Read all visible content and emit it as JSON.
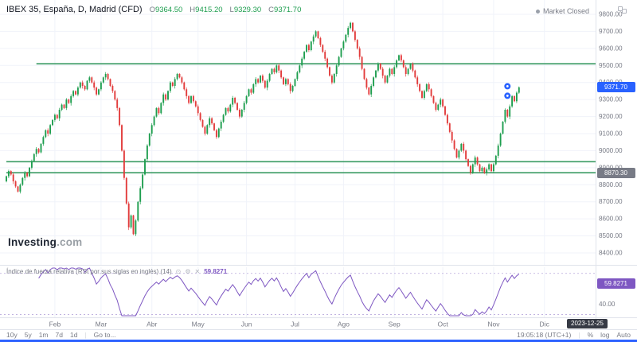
{
  "header": {
    "symbol": "IBEX 35, España, D, Madrid (CFD)",
    "ohlc": {
      "o_label": "O",
      "o": "9364.50",
      "h_label": "H",
      "h": "9415.20",
      "l_label": "L",
      "l": "9329.30",
      "c_label": "C",
      "c": "9371.70"
    },
    "market_status": "Market Closed"
  },
  "watermark": {
    "brand": "Investing",
    "suffix": ".com"
  },
  "rsi_header": {
    "title": "Índice de fuerza relativa (RSI por sus siglas en inglés) (14)",
    "eye_icon": "⊙",
    "gear_icon": "⚙",
    "close_icon": "✕",
    "value": "59.8271"
  },
  "toolbar": {
    "ranges": [
      "10y",
      "5y",
      "1m",
      "7d",
      "1d"
    ],
    "goto": "Go to...",
    "clock": "19:05:18 (UTC+1)",
    "pct": "%",
    "log": "log",
    "auto": "Auto"
  },
  "colors": {
    "accent_bar": "#2e62ff"
  },
  "chart_data": {
    "type": "candlestick",
    "title": "IBEX 35, España, D, Madrid (CFD)",
    "timeframe": "D",
    "ylim": [
      8400,
      9800
    ],
    "ohlc_last": {
      "open": 9364.5,
      "high": 9415.2,
      "low": 9329.3,
      "close": 9371.7
    },
    "first_open": 8820,
    "closes": [
      8850,
      8880,
      8860,
      8820,
      8790,
      8760,
      8800,
      8840,
      8870,
      8850,
      8900,
      8940,
      8980,
      9010,
      8990,
      9040,
      9080,
      9120,
      9100,
      9150,
      9180,
      9210,
      9190,
      9240,
      9270,
      9250,
      9300,
      9280,
      9320,
      9350,
      9330,
      9370,
      9400,
      9380,
      9360,
      9410,
      9430,
      9400,
      9370,
      9330,
      9360,
      9400,
      9430,
      9450,
      9420,
      9380,
      9350,
      9300,
      9250,
      9150,
      9000,
      8840,
      8690,
      8550,
      8620,
      8510,
      8590,
      8700,
      8780,
      8860,
      8950,
      9030,
      9100,
      9150,
      9200,
      9250,
      9220,
      9280,
      9330,
      9300,
      9350,
      9400,
      9380,
      9420,
      9450,
      9430,
      9400,
      9360,
      9320,
      9280,
      9320,
      9290,
      9260,
      9220,
      9180,
      9140,
      9100,
      9150,
      9190,
      9160,
      9120,
      9080,
      9130,
      9170,
      9210,
      9250,
      9230,
      9270,
      9310,
      9280,
      9240,
      9200,
      9240,
      9280,
      9320,
      9360,
      9340,
      9390,
      9420,
      9400,
      9440,
      9410,
      9370,
      9410,
      9450,
      9480,
      9460,
      9500,
      9470,
      9430,
      9390,
      9420,
      9390,
      9350,
      9380,
      9420,
      9460,
      9500,
      9540,
      9580,
      9620,
      9590,
      9640,
      9670,
      9700,
      9660,
      9620,
      9580,
      9540,
      9490,
      9440,
      9400,
      9450,
      9500,
      9550,
      9600,
      9640,
      9680,
      9720,
      9750,
      9700,
      9650,
      9600,
      9550,
      9480,
      9420,
      9370,
      9330,
      9380,
      9430,
      9470,
      9510,
      9480,
      9440,
      9400,
      9440,
      9480,
      9450,
      9490,
      9530,
      9560,
      9530,
      9490,
      9450,
      9480,
      9510,
      9470,
      9430,
      9390,
      9350,
      9310,
      9350,
      9390,
      9360,
      9320,
      9280,
      9240,
      9270,
      9300,
      9260,
      9210,
      9160,
      9110,
      9060,
      9010,
      8960,
      9000,
      9040,
      9000,
      8950,
      8910,
      8870,
      8920,
      8960,
      8920,
      8880,
      8900,
      8870,
      8890,
      8920,
      8880,
      8920,
      8970,
      9030,
      9100,
      9170,
      9240,
      9200,
      9260,
      9320,
      9290,
      9340,
      9371.7
    ],
    "lines": [
      {
        "name": "resistance",
        "level": 9510,
        "from_idx": 13
      },
      {
        "name": "support-upper",
        "level": 8935,
        "from_idx": 0
      },
      {
        "name": "support-lower",
        "level": 8870.3,
        "from_idx": 0
      }
    ],
    "rsi": {
      "period": 14,
      "bands": [
        70,
        30
      ],
      "last": 59.8271
    },
    "markers": [
      {
        "idx": 217,
        "price": 9378
      },
      {
        "idx": 217,
        "price": 9322
      }
    ],
    "months": [
      {
        "label": "Feb",
        "idx": 21
      },
      {
        "label": "Mar",
        "idx": 41
      },
      {
        "label": "Abr",
        "idx": 63
      },
      {
        "label": "May",
        "idx": 83
      },
      {
        "label": "Jun",
        "idx": 104
      },
      {
        "label": "Jul",
        "idx": 125
      },
      {
        "label": "Ago",
        "idx": 146
      },
      {
        "label": "Sep",
        "idx": 168
      },
      {
        "label": "Oct",
        "idx": 189
      },
      {
        "label": "Nov",
        "idx": 211
      },
      {
        "label": "Dic",
        "idx": 233
      }
    ],
    "price_ticks": [
      "9800.00",
      "9700.00",
      "9600.00",
      "9500.00",
      "9400.00",
      "9300.00",
      "9200.00",
      "9100.00",
      "9000.00",
      "8900.00",
      "8800.00",
      "8700.00",
      "8600.00",
      "8500.00",
      "8400.00"
    ],
    "rsi_ticks": [
      {
        "label": "40.00",
        "value": 40
      }
    ],
    "badges": {
      "price": {
        "label": "9371.70",
        "price": 9371.7,
        "color": "#2962ff"
      },
      "line": {
        "label": "8870.30",
        "price": 8870.3,
        "color": "#787b86"
      },
      "rsi": {
        "label": "59.8271",
        "value": 59.8271,
        "color": "#7e57c2"
      },
      "date": {
        "label": "2023-12-25"
      }
    },
    "colors": {
      "up": "#1e9e4f",
      "down": "#e23c3c",
      "line": "#3b9b63",
      "rsi": "#7e57c2",
      "marker": "#2962ff",
      "grid": "#f0f3fa",
      "separator": "#e0e3eb",
      "axis_text": "#787b86"
    }
  }
}
